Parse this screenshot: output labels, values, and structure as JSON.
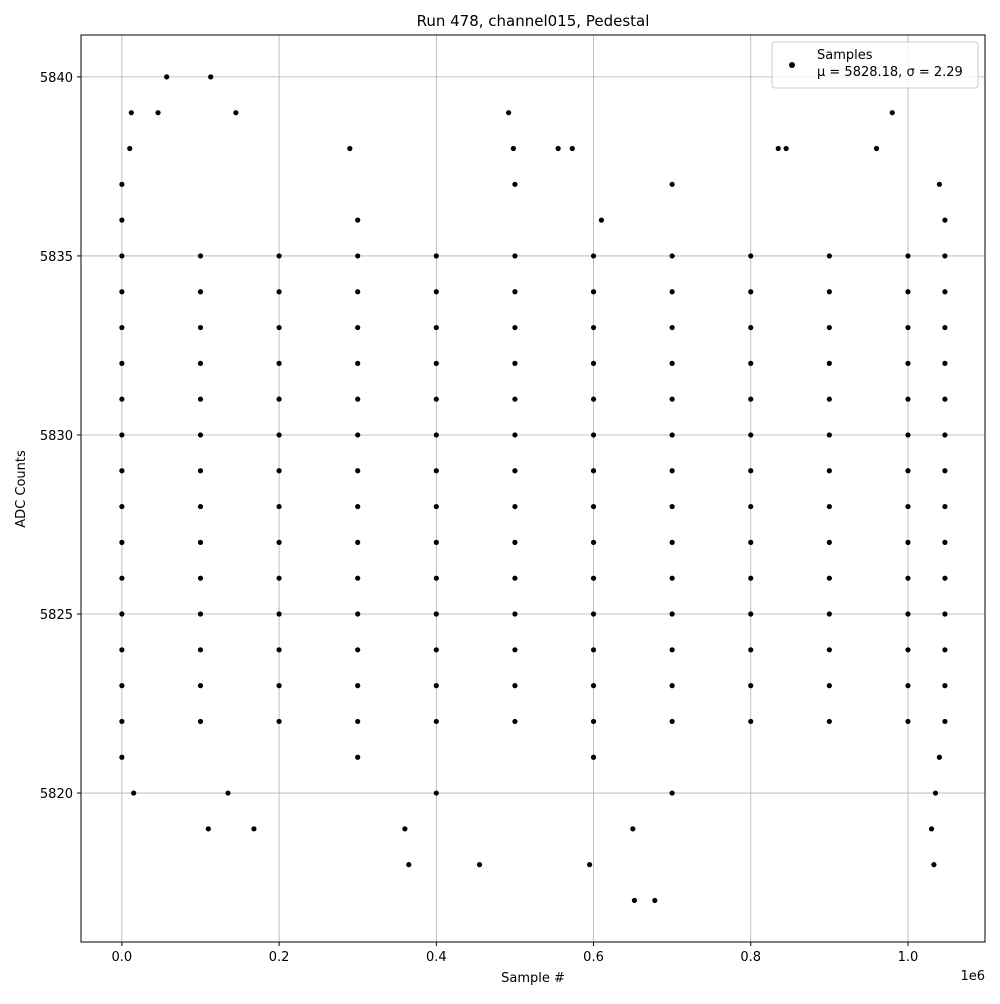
{
  "chart_data": {
    "type": "scatter",
    "title": "Run 478, channel015, Pedestal",
    "x_label": "Sample #",
    "y_label": "ADC Counts",
    "x_offset_label": "1e6",
    "xlim": [
      -52000,
      1098000
    ],
    "ylim": [
      5815.84,
      5841.17
    ],
    "xticks": [
      {
        "value": 0,
        "label": "0.0"
      },
      {
        "value": 200000,
        "label": "0.2"
      },
      {
        "value": 400000,
        "label": "0.4"
      },
      {
        "value": 600000,
        "label": "0.6"
      },
      {
        "value": 800000,
        "label": "0.8"
      },
      {
        "value": 1000000,
        "label": "1.0"
      }
    ],
    "yticks": [
      5820,
      5825,
      5830,
      5835,
      5840
    ],
    "grid": true,
    "legend": "upper right",
    "legend_subtitle": "μ = 5828.18, σ = 2.29",
    "series": [
      {
        "name": "Samples",
        "color": "#000000",
        "x": [
          0,
          100000,
          200000,
          300000,
          400000,
          500000,
          600000,
          700000,
          800000,
          900000,
          1000000,
          1047000,
          0,
          100000,
          200000,
          300000,
          400000,
          500000,
          600000,
          700000,
          800000,
          900000,
          1000000,
          1047000,
          0,
          100000,
          200000,
          300000,
          400000,
          500000,
          600000,
          700000,
          800000,
          900000,
          1000000,
          1047000,
          0,
          100000,
          200000,
          300000,
          400000,
          500000,
          600000,
          700000,
          800000,
          900000,
          1000000,
          1047000,
          0,
          100000,
          200000,
          300000,
          400000,
          500000,
          600000,
          700000,
          800000,
          900000,
          1000000,
          1047000,
          0,
          100000,
          200000,
          300000,
          400000,
          500000,
          600000,
          700000,
          800000,
          900000,
          1000000,
          1047000,
          0,
          100000,
          200000,
          300000,
          400000,
          500000,
          600000,
          700000,
          800000,
          900000,
          1000000,
          1047000,
          0,
          100000,
          200000,
          300000,
          400000,
          500000,
          600000,
          700000,
          800000,
          900000,
          1000000,
          1047000,
          0,
          100000,
          200000,
          300000,
          400000,
          500000,
          600000,
          700000,
          800000,
          900000,
          1000000,
          1047000,
          0,
          100000,
          200000,
          300000,
          400000,
          500000,
          600000,
          700000,
          800000,
          900000,
          1000000,
          1047000,
          0,
          100000,
          200000,
          300000,
          400000,
          500000,
          600000,
          700000,
          800000,
          900000,
          1000000,
          1047000,
          0,
          100000,
          200000,
          300000,
          400000,
          500000,
          600000,
          700000,
          800000,
          900000,
          1000000,
          1047000,
          0,
          100000,
          200000,
          300000,
          400000,
          500000,
          600000,
          700000,
          800000,
          900000,
          1000000,
          1047000,
          0,
          100000,
          200000,
          300000,
          400000,
          500000,
          600000,
          700000,
          800000,
          900000,
          1000000,
          1047000,
          57000,
          113000,
          12000,
          46000,
          145000,
          492000,
          980000,
          10000,
          290000,
          498000,
          555000,
          573000,
          835000,
          845000,
          960000,
          0,
          500000,
          700000,
          1040000,
          0,
          300000,
          610000,
          1047000,
          0,
          300000,
          600000,
          1040000,
          15000,
          135000,
          400000,
          700000,
          1035000,
          110000,
          168000,
          360000,
          650000,
          1030000,
          365000,
          455000,
          595000,
          1033000,
          652000,
          678000
        ],
        "values": [
          5822,
          5822,
          5822,
          5822,
          5822,
          5822,
          5822,
          5822,
          5822,
          5822,
          5822,
          5822,
          5823,
          5823,
          5823,
          5823,
          5823,
          5823,
          5823,
          5823,
          5823,
          5823,
          5823,
          5823,
          5824,
          5824,
          5824,
          5824,
          5824,
          5824,
          5824,
          5824,
          5824,
          5824,
          5824,
          5824,
          5825,
          5825,
          5825,
          5825,
          5825,
          5825,
          5825,
          5825,
          5825,
          5825,
          5825,
          5825,
          5826,
          5826,
          5826,
          5826,
          5826,
          5826,
          5826,
          5826,
          5826,
          5826,
          5826,
          5826,
          5827,
          5827,
          5827,
          5827,
          5827,
          5827,
          5827,
          5827,
          5827,
          5827,
          5827,
          5827,
          5828,
          5828,
          5828,
          5828,
          5828,
          5828,
          5828,
          5828,
          5828,
          5828,
          5828,
          5828,
          5829,
          5829,
          5829,
          5829,
          5829,
          5829,
          5829,
          5829,
          5829,
          5829,
          5829,
          5829,
          5830,
          5830,
          5830,
          5830,
          5830,
          5830,
          5830,
          5830,
          5830,
          5830,
          5830,
          5830,
          5831,
          5831,
          5831,
          5831,
          5831,
          5831,
          5831,
          5831,
          5831,
          5831,
          5831,
          5831,
          5832,
          5832,
          5832,
          5832,
          5832,
          5832,
          5832,
          5832,
          5832,
          5832,
          5832,
          5832,
          5833,
          5833,
          5833,
          5833,
          5833,
          5833,
          5833,
          5833,
          5833,
          5833,
          5833,
          5833,
          5834,
          5834,
          5834,
          5834,
          5834,
          5834,
          5834,
          5834,
          5834,
          5834,
          5834,
          5834,
          5835,
          5835,
          5835,
          5835,
          5835,
          5835,
          5835,
          5835,
          5835,
          5835,
          5835,
          5835,
          5840,
          5840,
          5839,
          5839,
          5839,
          5839,
          5839,
          5838,
          5838,
          5838,
          5838,
          5838,
          5838,
          5838,
          5838,
          5837,
          5837,
          5837,
          5837,
          5836,
          5836,
          5836,
          5836,
          5821,
          5821,
          5821,
          5821,
          5820,
          5820,
          5820,
          5820,
          5820,
          5819,
          5819,
          5819,
          5819,
          5819,
          5818,
          5818,
          5818,
          5818,
          5817,
          5817
        ]
      }
    ]
  }
}
